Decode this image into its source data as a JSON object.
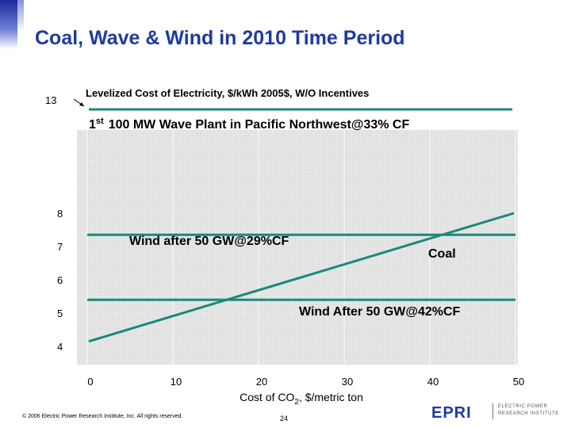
{
  "slide": {
    "title": "Coal, Wave & Wind in 2010 Time Period",
    "footer_copyright": "© 2006 Electric Power Research Institute, Inc. All rights reserved.",
    "page_number": "24",
    "logo": {
      "mark": "EPRI",
      "line1": "ELECTRIC POWER",
      "line2": "RESEARCH INSTITUTE",
      "color": "#1f3a9e"
    }
  },
  "chart_data": {
    "type": "line",
    "title": "Levelized Cost of Electricity, $/kWh 2005$, W/O Incentives",
    "xlabel": "Cost of CO",
    "xlabel_sub": "2",
    "xlabel_suffix": ", $/metric ton",
    "xlim": [
      0,
      50
    ],
    "ylim": [
      4,
      8
    ],
    "x_ticks": [
      0,
      10,
      20,
      30,
      40,
      50
    ],
    "y_ticks": [
      4,
      5,
      6,
      7,
      8
    ],
    "y_break_label": "13",
    "grid": true,
    "line_color": "#1a8a7a",
    "series": [
      {
        "name": "Coal",
        "x": [
          0,
          50
        ],
        "y": [
          4.15,
          8.0
        ]
      },
      {
        "name": "Wind after 50 GW@29%CF",
        "x": [
          0,
          50
        ],
        "y": [
          7.35,
          7.35
        ]
      },
      {
        "name": "Wind After 50 GW@42%CF",
        "x": [
          0,
          50
        ],
        "y": [
          5.4,
          5.4
        ]
      },
      {
        "name": "100 MW Wave Plant in Pacific Northwest@33% CF",
        "value": 13,
        "x": [
          0,
          50
        ]
      }
    ],
    "annotations": {
      "wave_prefix": "1",
      "wave_sup": "st",
      "wave_text": "100 MW Wave Plant in Pacific Northwest@33% CF",
      "wind29": "Wind after 50 GW@29%CF",
      "coal": "Coal",
      "wind42": "Wind After 50 GW@42%CF"
    }
  }
}
